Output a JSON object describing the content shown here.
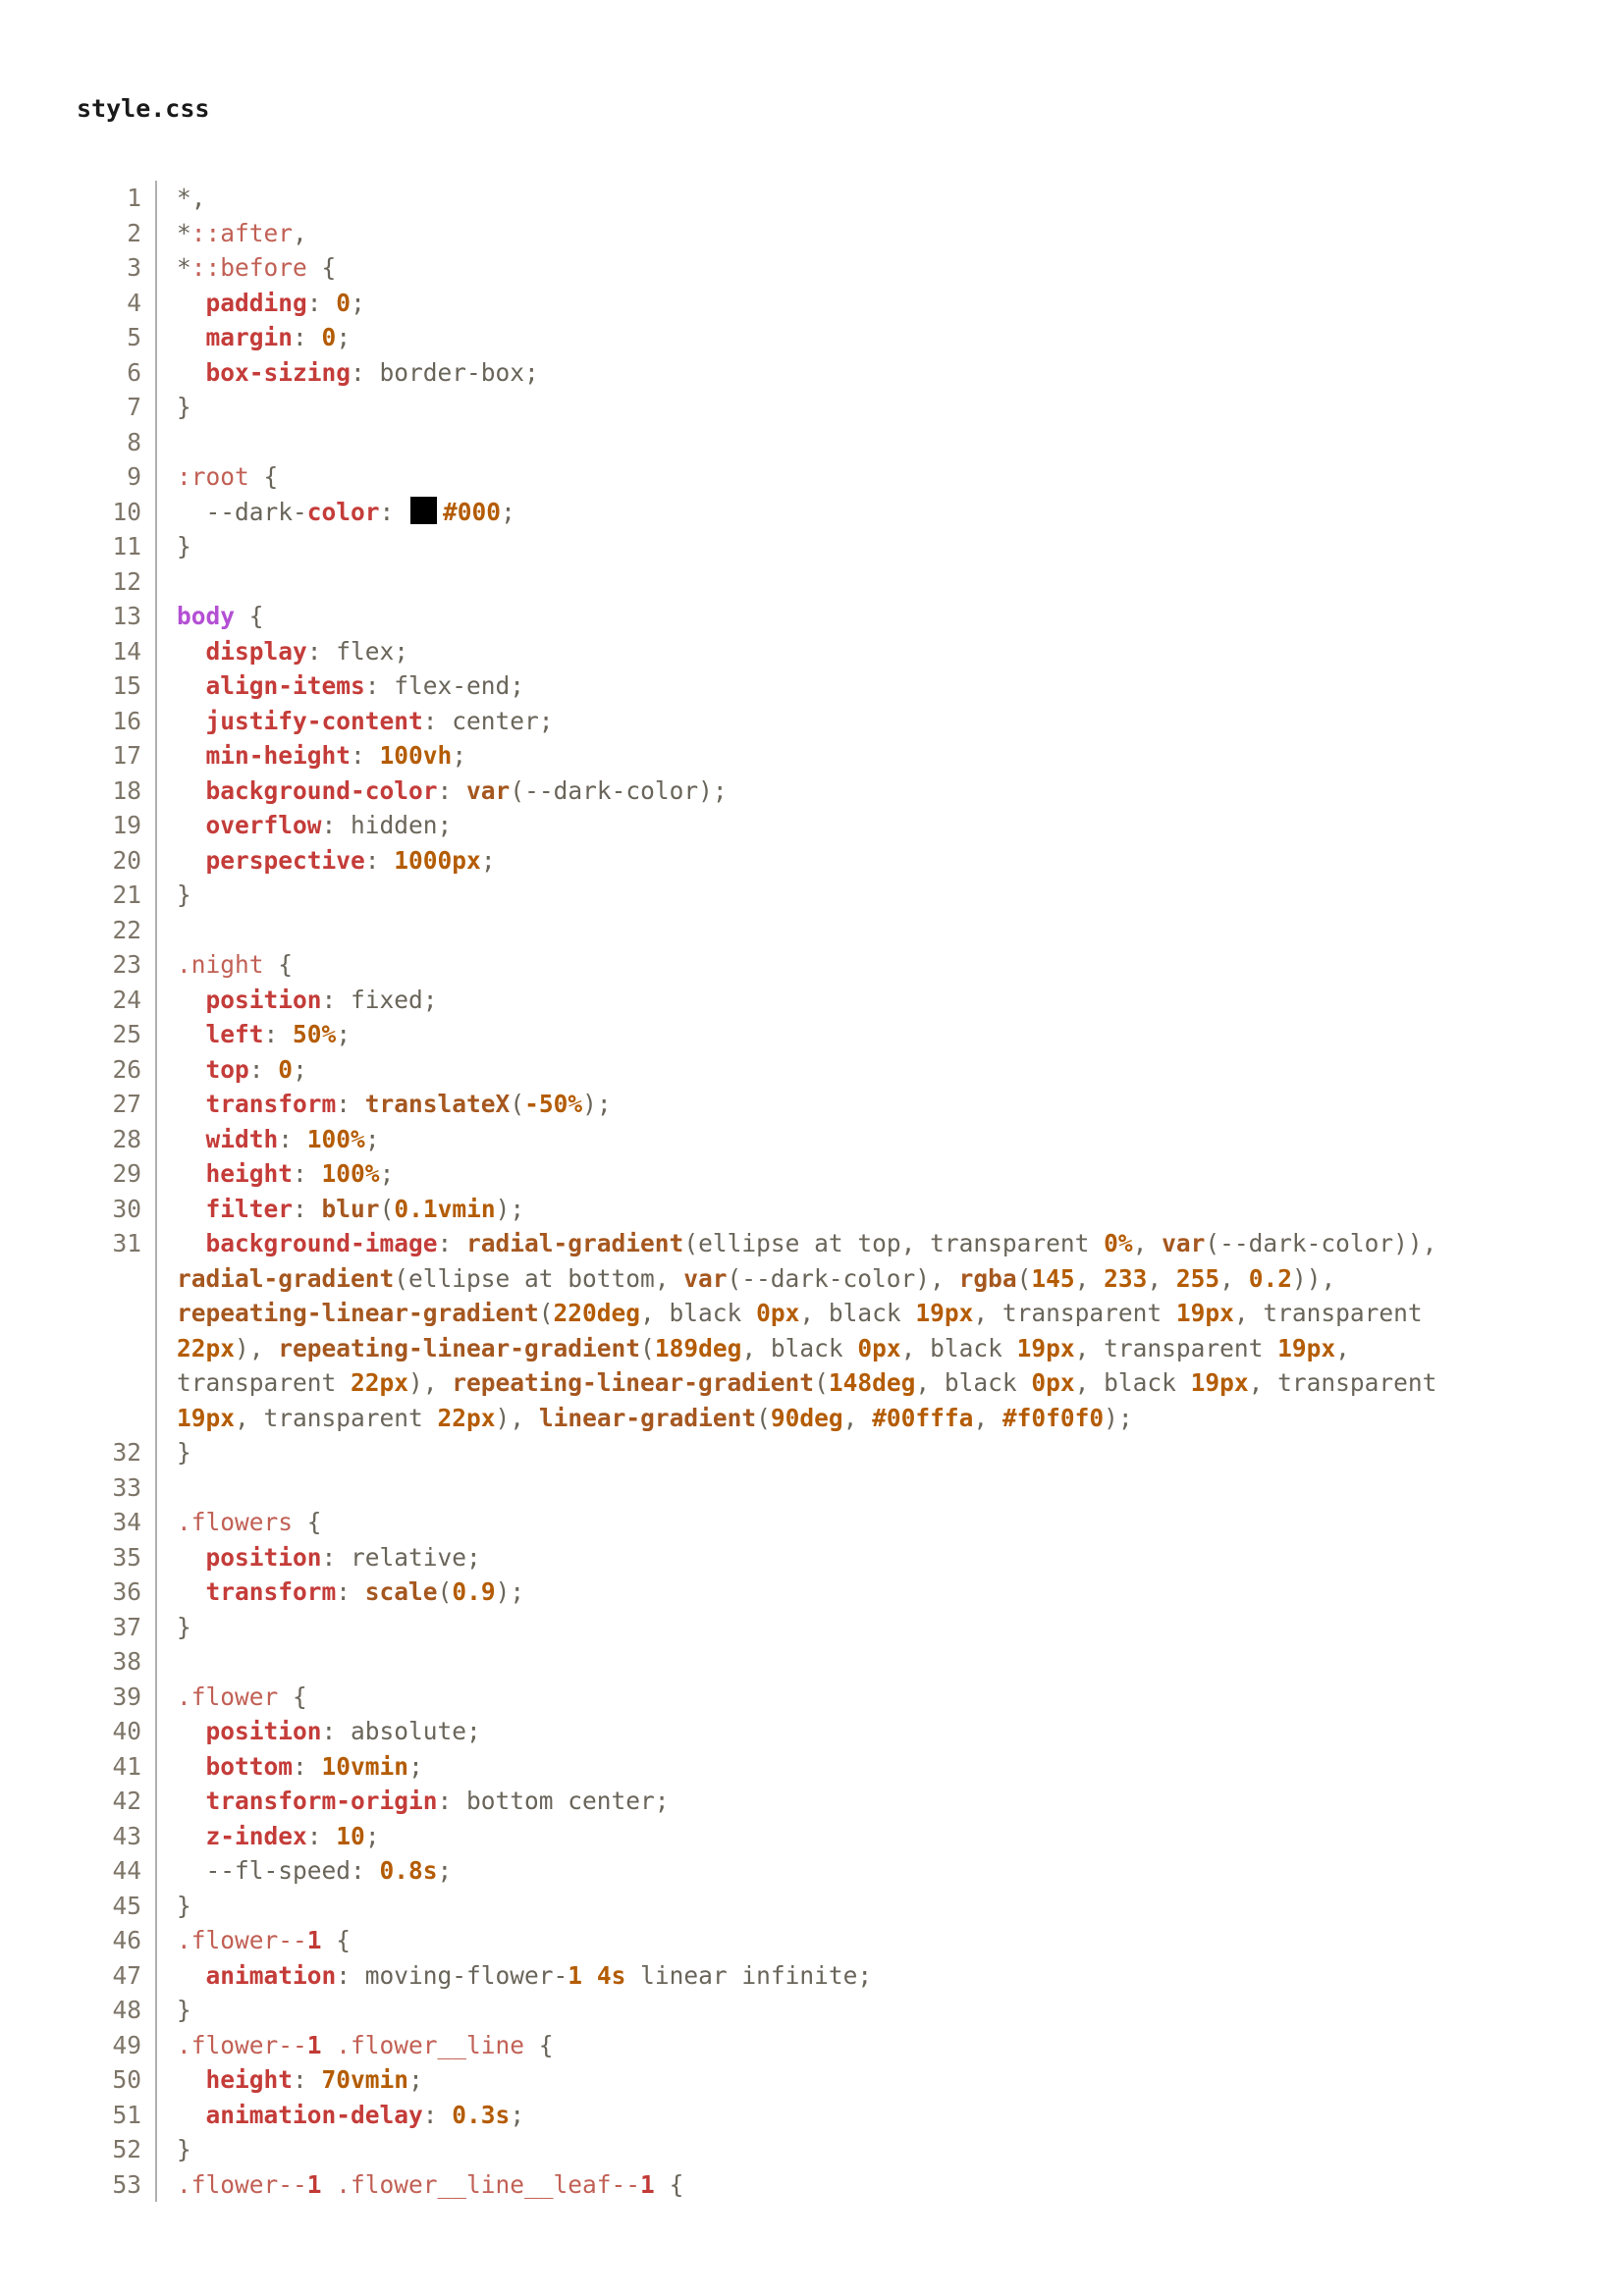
{
  "file": {
    "title": "style.css"
  },
  "colors": {
    "title": "#1a1a1a",
    "line_number": "#7d7568",
    "divider": "#b0b0b0",
    "gray_value": "#6a655a",
    "selector": "#c16055",
    "selector_number": "#c13a35",
    "element_keyword": "#b44fd4",
    "property": "#c43c39",
    "function": "#a5571f",
    "number": "#b45c04",
    "swatch_black": "#000000"
  },
  "code": {
    "language": "css",
    "lines": [
      {
        "n": "1",
        "segs": [
          [
            "g",
            "*,"
          ]
        ]
      },
      {
        "n": "2",
        "segs": [
          [
            "g",
            "*"
          ],
          [
            "sel",
            "::after"
          ],
          [
            "g",
            ","
          ]
        ]
      },
      {
        "n": "3",
        "segs": [
          [
            "g",
            "*"
          ],
          [
            "sel",
            "::before"
          ],
          [
            "g",
            " {"
          ]
        ]
      },
      {
        "n": "4",
        "segs": [
          [
            "g",
            "  "
          ],
          [
            "pr",
            "padding"
          ],
          [
            "g",
            ": "
          ],
          [
            "nu",
            "0"
          ],
          [
            "g",
            ";"
          ]
        ]
      },
      {
        "n": "5",
        "segs": [
          [
            "g",
            "  "
          ],
          [
            "pr",
            "margin"
          ],
          [
            "g",
            ": "
          ],
          [
            "nu",
            "0"
          ],
          [
            "g",
            ";"
          ]
        ]
      },
      {
        "n": "6",
        "segs": [
          [
            "g",
            "  "
          ],
          [
            "pr",
            "box-sizing"
          ],
          [
            "g",
            ": border-box;"
          ]
        ]
      },
      {
        "n": "7",
        "segs": [
          [
            "g",
            "}"
          ]
        ]
      },
      {
        "n": "8",
        "segs": []
      },
      {
        "n": "9",
        "segs": [
          [
            "sel",
            ":root"
          ],
          [
            "g",
            " {"
          ]
        ]
      },
      {
        "n": "10",
        "segs": [
          [
            "g",
            "  --dark-"
          ],
          [
            "pr",
            "color"
          ],
          [
            "g",
            ": "
          ],
          [
            "sw",
            "#000000"
          ],
          [
            "nu",
            "#000"
          ],
          [
            "g",
            ";"
          ]
        ]
      },
      {
        "n": "11",
        "segs": [
          [
            "g",
            "}"
          ]
        ]
      },
      {
        "n": "12",
        "segs": []
      },
      {
        "n": "13",
        "segs": [
          [
            "el",
            "body"
          ],
          [
            "g",
            " {"
          ]
        ]
      },
      {
        "n": "14",
        "segs": [
          [
            "g",
            "  "
          ],
          [
            "pr",
            "display"
          ],
          [
            "g",
            ": flex;"
          ]
        ]
      },
      {
        "n": "15",
        "segs": [
          [
            "g",
            "  "
          ],
          [
            "pr",
            "align-items"
          ],
          [
            "g",
            ": flex-end;"
          ]
        ]
      },
      {
        "n": "16",
        "segs": [
          [
            "g",
            "  "
          ],
          [
            "pr",
            "justify-content"
          ],
          [
            "g",
            ": center;"
          ]
        ]
      },
      {
        "n": "17",
        "segs": [
          [
            "g",
            "  "
          ],
          [
            "pr",
            "min-height"
          ],
          [
            "g",
            ": "
          ],
          [
            "nu",
            "100vh"
          ],
          [
            "g",
            ";"
          ]
        ]
      },
      {
        "n": "18",
        "segs": [
          [
            "g",
            "  "
          ],
          [
            "pr",
            "background-color"
          ],
          [
            "g",
            ": "
          ],
          [
            "fn",
            "var"
          ],
          [
            "g",
            "(--dark-color);"
          ]
        ]
      },
      {
        "n": "19",
        "segs": [
          [
            "g",
            "  "
          ],
          [
            "pr",
            "overflow"
          ],
          [
            "g",
            ": hidden;"
          ]
        ]
      },
      {
        "n": "20",
        "segs": [
          [
            "g",
            "  "
          ],
          [
            "pr",
            "perspective"
          ],
          [
            "g",
            ": "
          ],
          [
            "nu",
            "1000px"
          ],
          [
            "g",
            ";"
          ]
        ]
      },
      {
        "n": "21",
        "segs": [
          [
            "g",
            "}"
          ]
        ]
      },
      {
        "n": "22",
        "segs": []
      },
      {
        "n": "23",
        "segs": [
          [
            "sel",
            ".night"
          ],
          [
            "g",
            " {"
          ]
        ]
      },
      {
        "n": "24",
        "segs": [
          [
            "g",
            "  "
          ],
          [
            "pr",
            "position"
          ],
          [
            "g",
            ": fixed;"
          ]
        ]
      },
      {
        "n": "25",
        "segs": [
          [
            "g",
            "  "
          ],
          [
            "pr",
            "left"
          ],
          [
            "g",
            ": "
          ],
          [
            "nu",
            "50%"
          ],
          [
            "g",
            ";"
          ]
        ]
      },
      {
        "n": "26",
        "segs": [
          [
            "g",
            "  "
          ],
          [
            "pr",
            "top"
          ],
          [
            "g",
            ": "
          ],
          [
            "nu",
            "0"
          ],
          [
            "g",
            ";"
          ]
        ]
      },
      {
        "n": "27",
        "segs": [
          [
            "g",
            "  "
          ],
          [
            "pr",
            "transform"
          ],
          [
            "g",
            ": "
          ],
          [
            "fn",
            "translateX"
          ],
          [
            "g",
            "("
          ],
          [
            "nu",
            "-50%"
          ],
          [
            "g",
            ");"
          ]
        ]
      },
      {
        "n": "28",
        "segs": [
          [
            "g",
            "  "
          ],
          [
            "pr",
            "width"
          ],
          [
            "g",
            ": "
          ],
          [
            "nu",
            "100%"
          ],
          [
            "g",
            ";"
          ]
        ]
      },
      {
        "n": "29",
        "segs": [
          [
            "g",
            "  "
          ],
          [
            "pr",
            "height"
          ],
          [
            "g",
            ": "
          ],
          [
            "nu",
            "100%"
          ],
          [
            "g",
            ";"
          ]
        ]
      },
      {
        "n": "30",
        "segs": [
          [
            "g",
            "  "
          ],
          [
            "pr",
            "filter"
          ],
          [
            "g",
            ": "
          ],
          [
            "fn",
            "blur"
          ],
          [
            "g",
            "("
          ],
          [
            "nu",
            "0.1vmin"
          ],
          [
            "g",
            ");"
          ]
        ]
      },
      {
        "n": "31",
        "segs": [
          [
            "g",
            "  "
          ],
          [
            "pr",
            "background-image"
          ],
          [
            "g",
            ": "
          ],
          [
            "fn",
            "radial-gradient"
          ],
          [
            "g",
            "(ellipse at top, transparent "
          ],
          [
            "nu",
            "0%"
          ],
          [
            "g",
            ", "
          ],
          [
            "fn",
            "var"
          ],
          [
            "g",
            "(--dark-color)),"
          ]
        ]
      },
      {
        "n": "",
        "segs": [
          [
            "fn",
            "radial-gradient"
          ],
          [
            "g",
            "(ellipse at bottom, "
          ],
          [
            "fn",
            "var"
          ],
          [
            "g",
            "(--dark-color), "
          ],
          [
            "fn",
            "rgba"
          ],
          [
            "g",
            "("
          ],
          [
            "nu",
            "145"
          ],
          [
            "g",
            ", "
          ],
          [
            "nu",
            "233"
          ],
          [
            "g",
            ", "
          ],
          [
            "nu",
            "255"
          ],
          [
            "g",
            ", "
          ],
          [
            "nu",
            "0.2"
          ],
          [
            "g",
            ")),"
          ]
        ]
      },
      {
        "n": "",
        "segs": [
          [
            "fn",
            "repeating-linear-gradient"
          ],
          [
            "g",
            "("
          ],
          [
            "nu",
            "220deg"
          ],
          [
            "g",
            ", black "
          ],
          [
            "nu",
            "0px"
          ],
          [
            "g",
            ", black "
          ],
          [
            "nu",
            "19px"
          ],
          [
            "g",
            ", transparent "
          ],
          [
            "nu",
            "19px"
          ],
          [
            "g",
            ", transparent"
          ]
        ]
      },
      {
        "n": "",
        "segs": [
          [
            "nu",
            "22px"
          ],
          [
            "g",
            "), "
          ],
          [
            "fn",
            "repeating-linear-gradient"
          ],
          [
            "g",
            "("
          ],
          [
            "nu",
            "189deg"
          ],
          [
            "g",
            ", black "
          ],
          [
            "nu",
            "0px"
          ],
          [
            "g",
            ", black "
          ],
          [
            "nu",
            "19px"
          ],
          [
            "g",
            ", transparent "
          ],
          [
            "nu",
            "19px"
          ],
          [
            "g",
            ","
          ]
        ]
      },
      {
        "n": "",
        "segs": [
          [
            "g",
            "transparent "
          ],
          [
            "nu",
            "22px"
          ],
          [
            "g",
            "), "
          ],
          [
            "fn",
            "repeating-linear-gradient"
          ],
          [
            "g",
            "("
          ],
          [
            "nu",
            "148deg"
          ],
          [
            "g",
            ", black "
          ],
          [
            "nu",
            "0px"
          ],
          [
            "g",
            ", black "
          ],
          [
            "nu",
            "19px"
          ],
          [
            "g",
            ", transparent"
          ]
        ]
      },
      {
        "n": "",
        "segs": [
          [
            "nu",
            "19px"
          ],
          [
            "g",
            ", transparent "
          ],
          [
            "nu",
            "22px"
          ],
          [
            "g",
            "), "
          ],
          [
            "fn",
            "linear-gradient"
          ],
          [
            "g",
            "("
          ],
          [
            "nu",
            "90deg"
          ],
          [
            "g",
            ", "
          ],
          [
            "nu",
            "#00fffa"
          ],
          [
            "g",
            ", "
          ],
          [
            "nu",
            "#f0f0f0"
          ],
          [
            "g",
            ");"
          ]
        ]
      },
      {
        "n": "32",
        "segs": [
          [
            "g",
            "}"
          ]
        ]
      },
      {
        "n": "33",
        "segs": []
      },
      {
        "n": "34",
        "segs": [
          [
            "sel",
            ".flowers"
          ],
          [
            "g",
            " {"
          ]
        ]
      },
      {
        "n": "35",
        "segs": [
          [
            "g",
            "  "
          ],
          [
            "pr",
            "position"
          ],
          [
            "g",
            ": relative;"
          ]
        ]
      },
      {
        "n": "36",
        "segs": [
          [
            "g",
            "  "
          ],
          [
            "pr",
            "transform"
          ],
          [
            "g",
            ": "
          ],
          [
            "fn",
            "scale"
          ],
          [
            "g",
            "("
          ],
          [
            "nu",
            "0.9"
          ],
          [
            "g",
            ");"
          ]
        ]
      },
      {
        "n": "37",
        "segs": [
          [
            "g",
            "}"
          ]
        ]
      },
      {
        "n": "38",
        "segs": []
      },
      {
        "n": "39",
        "segs": [
          [
            "sel",
            ".flower"
          ],
          [
            "g",
            " {"
          ]
        ]
      },
      {
        "n": "40",
        "segs": [
          [
            "g",
            "  "
          ],
          [
            "pr",
            "position"
          ],
          [
            "g",
            ": absolute;"
          ]
        ]
      },
      {
        "n": "41",
        "segs": [
          [
            "g",
            "  "
          ],
          [
            "pr",
            "bottom"
          ],
          [
            "g",
            ": "
          ],
          [
            "nu",
            "10vmin"
          ],
          [
            "g",
            ";"
          ]
        ]
      },
      {
        "n": "42",
        "segs": [
          [
            "g",
            "  "
          ],
          [
            "pr",
            "transform-origin"
          ],
          [
            "g",
            ": bottom center;"
          ]
        ]
      },
      {
        "n": "43",
        "segs": [
          [
            "g",
            "  "
          ],
          [
            "pr",
            "z-index"
          ],
          [
            "g",
            ": "
          ],
          [
            "nu",
            "10"
          ],
          [
            "g",
            ";"
          ]
        ]
      },
      {
        "n": "44",
        "segs": [
          [
            "g",
            "  --fl-speed: "
          ],
          [
            "nu",
            "0.8s"
          ],
          [
            "g",
            ";"
          ]
        ]
      },
      {
        "n": "45",
        "segs": [
          [
            "g",
            "}"
          ]
        ]
      },
      {
        "n": "46",
        "segs": [
          [
            "sel",
            ".flower--"
          ],
          [
            "sn",
            "1"
          ],
          [
            "g",
            " {"
          ]
        ]
      },
      {
        "n": "47",
        "segs": [
          [
            "g",
            "  "
          ],
          [
            "pr",
            "animation"
          ],
          [
            "g",
            ": moving-flower-"
          ],
          [
            "nu",
            "1"
          ],
          [
            "g",
            " "
          ],
          [
            "nu",
            "4s"
          ],
          [
            "g",
            " linear infinite;"
          ]
        ]
      },
      {
        "n": "48",
        "segs": [
          [
            "g",
            "}"
          ]
        ]
      },
      {
        "n": "49",
        "segs": [
          [
            "sel",
            ".flower--"
          ],
          [
            "sn",
            "1"
          ],
          [
            "sel",
            " .flower__line"
          ],
          [
            "g",
            " {"
          ]
        ]
      },
      {
        "n": "50",
        "segs": [
          [
            "g",
            "  "
          ],
          [
            "pr",
            "height"
          ],
          [
            "g",
            ": "
          ],
          [
            "nu",
            "70vmin"
          ],
          [
            "g",
            ";"
          ]
        ]
      },
      {
        "n": "51",
        "segs": [
          [
            "g",
            "  "
          ],
          [
            "pr",
            "animation-delay"
          ],
          [
            "g",
            ": "
          ],
          [
            "nu",
            "0.3s"
          ],
          [
            "g",
            ";"
          ]
        ]
      },
      {
        "n": "52",
        "segs": [
          [
            "g",
            "}"
          ]
        ]
      },
      {
        "n": "53",
        "segs": [
          [
            "sel",
            ".flower--"
          ],
          [
            "sn",
            "1"
          ],
          [
            "sel",
            " .flower__line__leaf--"
          ],
          [
            "sn",
            "1"
          ],
          [
            "g",
            " {"
          ]
        ]
      }
    ]
  }
}
